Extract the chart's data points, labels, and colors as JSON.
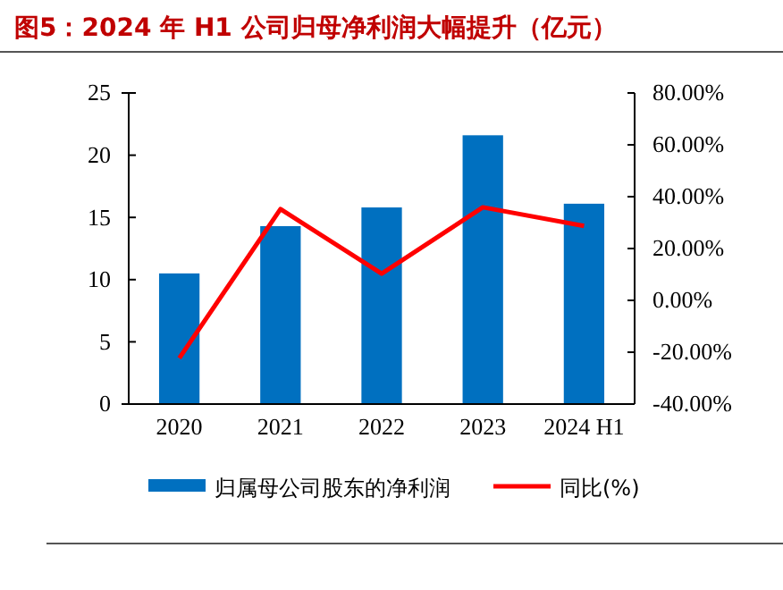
{
  "chart_data": {
    "type": "bar",
    "title": "图5：2024 年 H1 公司归母净利润大幅提升（亿元）",
    "categories": [
      "2020",
      "2021",
      "2022",
      "2023",
      "2024 H1"
    ],
    "series": [
      {
        "name": "归属母公司股东的净利润",
        "color": "#0070c0",
        "values": [
          10.5,
          14.3,
          15.8,
          21.6,
          16.1
        ]
      },
      {
        "name": "同比(%)",
        "type": "line",
        "axis": "y2",
        "color": "#ff0000",
        "values": [
          -22.3,
          35.2,
          10.3,
          35.9,
          28.7
        ]
      }
    ],
    "ylim": [
      0,
      25
    ],
    "yticks": [
      0,
      5,
      10,
      15,
      20,
      25
    ],
    "y2lim": [
      -40,
      80
    ],
    "y2ticks": [
      {
        "value": -40,
        "label": "-40.00%"
      },
      {
        "value": -20,
        "label": "-20.00%"
      },
      {
        "value": 0,
        "label": "0.00%"
      },
      {
        "value": 20,
        "label": "20.00%"
      },
      {
        "value": 40,
        "label": "40.00%"
      },
      {
        "value": 60,
        "label": "60.00%"
      },
      {
        "value": 80,
        "label": "80.00%"
      }
    ],
    "legend": "bottom",
    "marker": "none",
    "grid": false
  }
}
